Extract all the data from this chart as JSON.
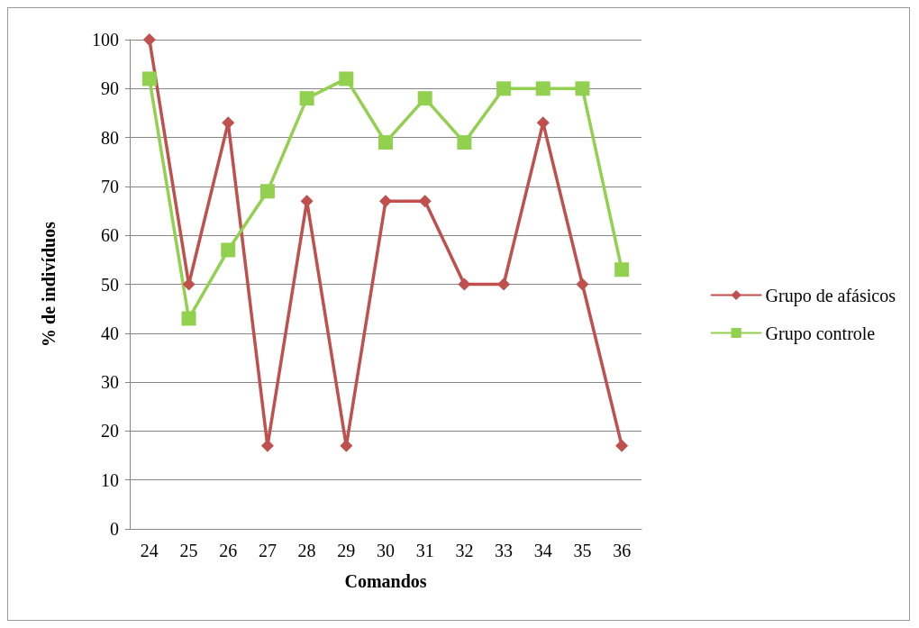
{
  "chart_data": {
    "type": "line",
    "xlabel": "Comandos",
    "ylabel": "% de indivíduos",
    "categories": [
      "24",
      "25",
      "26",
      "27",
      "28",
      "29",
      "30",
      "31",
      "32",
      "33",
      "34",
      "35",
      "36"
    ],
    "series": [
      {
        "name": "Grupo de afásicos",
        "color": "#c0504d",
        "marker": "diamond",
        "values": [
          100,
          50,
          83,
          17,
          67,
          17,
          67,
          67,
          50,
          50,
          83,
          50,
          17
        ]
      },
      {
        "name": "Grupo controle",
        "color": "#92d050",
        "marker": "square",
        "values": [
          92,
          43,
          57,
          69,
          88,
          92,
          79,
          88,
          79,
          90,
          90,
          90,
          53
        ]
      }
    ],
    "ylim": [
      0,
      100
    ],
    "yticks": [
      0,
      10,
      20,
      30,
      40,
      50,
      60,
      70,
      80,
      90,
      100
    ],
    "grid": "y",
    "legend": "right",
    "line_style": "solid"
  }
}
